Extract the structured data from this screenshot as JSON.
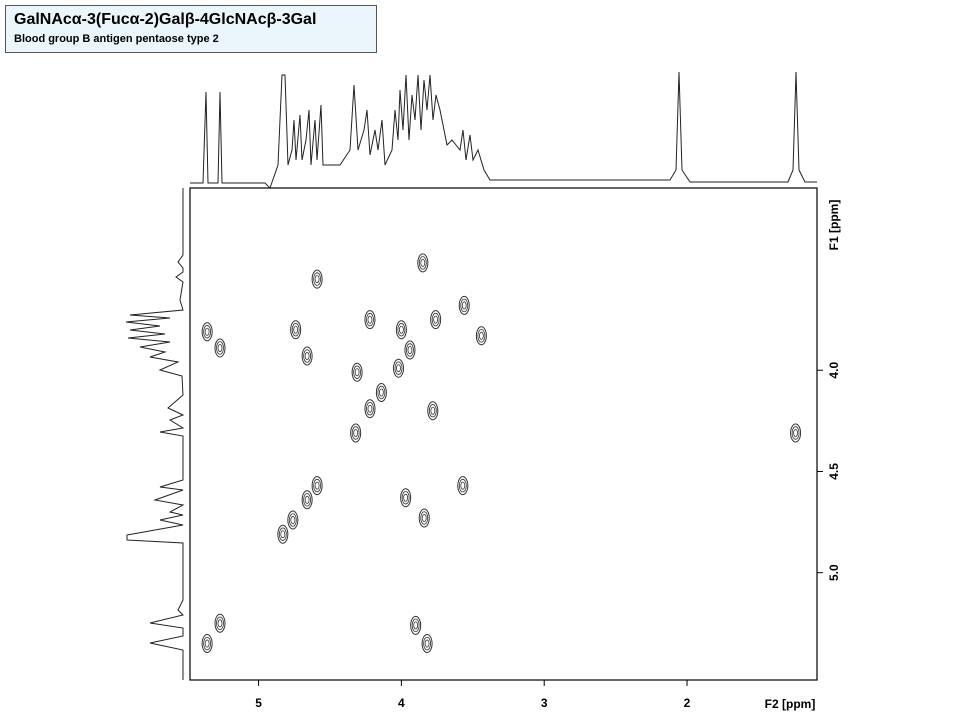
{
  "chart_data": {
    "type": "scatter",
    "title": "GalNAcα-3(Fucα-2)Galβ-4GlcNAcβ-3Gal",
    "subtitle": "Blood group B antigen pentaose type 2",
    "x_label": "F2 [ppm]",
    "y_label": "F1 [ppm]",
    "xlim": [
      5.48,
      1.09
    ],
    "ylim": [
      3.1,
      5.53
    ],
    "xticks": [
      5,
      4,
      3,
      2
    ],
    "yticks": [
      {
        "value": 4.0,
        "label": "4.0"
      },
      {
        "value": 4.5,
        "label": "4.5"
      },
      {
        "value": 5.0,
        "label": "5.0"
      }
    ],
    "color": "#333333",
    "x": [
      3.85,
      4.59,
      5.36,
      5.27,
      4.74,
      4.66,
      4.22,
      4.0,
      3.76,
      3.94,
      4.02,
      4.31,
      4.14,
      4.22,
      4.32,
      3.78,
      3.56,
      3.44,
      1.24,
      4.59,
      4.66,
      4.83,
      3.97,
      3.84,
      3.57,
      3.9,
      3.82,
      5.27,
      5.36,
      4.76
    ],
    "values": [
      3.47,
      3.55,
      3.81,
      3.89,
      3.8,
      3.93,
      3.75,
      3.8,
      3.75,
      3.9,
      3.99,
      4.01,
      4.11,
      4.19,
      4.31,
      4.2,
      3.68,
      3.83,
      4.31,
      4.57,
      4.64,
      4.81,
      4.63,
      4.73,
      4.57,
      5.26,
      5.35,
      5.25,
      5.35,
      4.74
    ]
  }
}
